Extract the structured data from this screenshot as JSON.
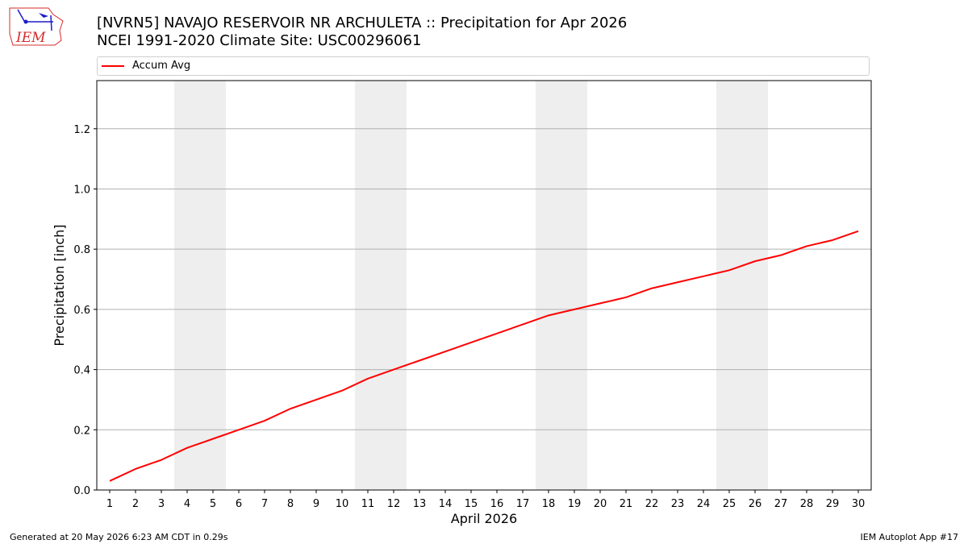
{
  "title_line1": "[NVRN5] NAVAJO RESERVOIR NR ARCHULETA :: Precipitation for Apr 2026",
  "title_line2": "NCEI 1991-2020 Climate Site: USC00296061",
  "logo_text": "IEM",
  "footer_left": "Generated at 20 May 2026 6:23 AM CDT in 0.29s",
  "footer_right": "IEM Autoplot App #17",
  "colors": {
    "series": "#ff0000",
    "weekend_band": "#eeeeee",
    "grid": "#b0b0b0",
    "logo": "#d62b2b"
  },
  "chart_data": {
    "type": "line",
    "xlabel": "April 2026",
    "ylabel": "Precipitation [inch]",
    "xlim": [
      0.5,
      30.5
    ],
    "ylim": [
      0,
      1.36
    ],
    "yticks": [
      0.0,
      0.2,
      0.4,
      0.6,
      0.8,
      1.0,
      1.2
    ],
    "ytick_labels": [
      "0.0",
      "0.2",
      "0.4",
      "0.6",
      "0.8",
      "1.0",
      "1.2"
    ],
    "xticks": [
      1,
      2,
      3,
      4,
      5,
      6,
      7,
      8,
      9,
      10,
      11,
      12,
      13,
      14,
      15,
      16,
      17,
      18,
      19,
      20,
      21,
      22,
      23,
      24,
      25,
      26,
      27,
      28,
      29,
      30
    ],
    "grid": "horizontal",
    "legend_position": "top",
    "weekend_bands": [
      [
        4,
        5
      ],
      [
        11,
        12
      ],
      [
        18,
        19
      ],
      [
        25,
        26
      ]
    ],
    "series": [
      {
        "name": "Accum Avg",
        "x": [
          1,
          2,
          3,
          4,
          5,
          6,
          7,
          8,
          9,
          10,
          11,
          12,
          13,
          14,
          15,
          16,
          17,
          18,
          19,
          20,
          21,
          22,
          23,
          24,
          25,
          26,
          27,
          28,
          29,
          30
        ],
        "y": [
          0.03,
          0.07,
          0.1,
          0.14,
          0.17,
          0.2,
          0.23,
          0.27,
          0.3,
          0.33,
          0.37,
          0.4,
          0.43,
          0.46,
          0.49,
          0.52,
          0.55,
          0.58,
          0.6,
          0.62,
          0.64,
          0.67,
          0.69,
          0.71,
          0.73,
          0.76,
          0.78,
          0.81,
          0.83,
          0.86
        ]
      }
    ]
  }
}
